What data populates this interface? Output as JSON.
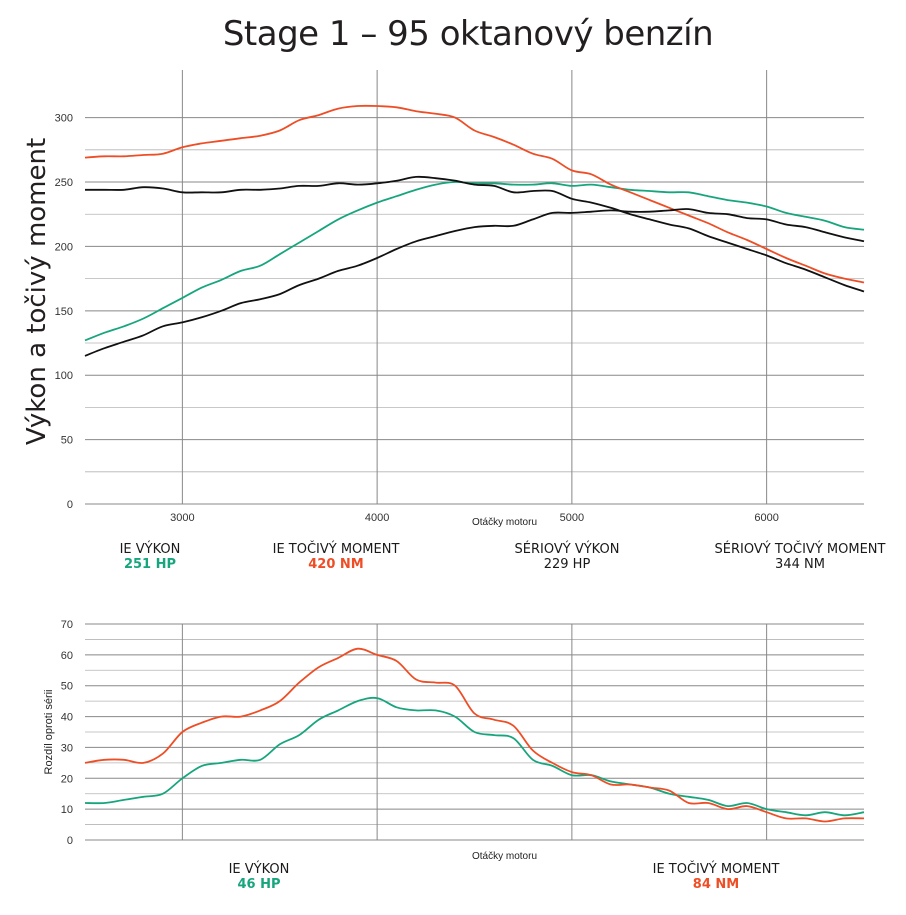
{
  "title": "Stage 1 – 95 oktanový benzín",
  "colors": {
    "ie_power": "#17a57e",
    "ie_torque": "#ee4e26",
    "stock": "#111111",
    "grid": "#888888"
  },
  "stats_top": [
    {
      "label": "IE VÝKON",
      "value": "251 HP",
      "color": "#17a57e"
    },
    {
      "label": "IE TOČIVÝ MOMENT",
      "value": "420 NM",
      "color": "#ee4e26"
    },
    {
      "label": "SÉRIOVÝ VÝKON",
      "value": "229 HP",
      "color": "#1a1a1a"
    },
    {
      "label": "SÉRIOVÝ TOČIVÝ MOMENT",
      "value": "344 NM",
      "color": "#1a1a1a"
    }
  ],
  "stats_bottom": [
    {
      "label": "IE VÝKON",
      "value": "46 HP",
      "color": "#17a57e"
    },
    {
      "label": "IE TOČIVÝ MOMENT",
      "value": "84 NM",
      "color": "#ee4e26"
    }
  ],
  "chart_data": [
    {
      "type": "line",
      "xlabel": "Otáčky motoru",
      "ylabel": "Výkon a točivý moment",
      "xlim": [
        2500,
        6500
      ],
      "ylim": [
        0,
        330
      ],
      "xticks": [
        3000,
        4000,
        5000,
        6000
      ],
      "yticks": [
        0,
        50,
        100,
        150,
        200,
        250,
        300
      ],
      "grid": true,
      "series": [
        {
          "key": "ie_power",
          "color": "#17a57e",
          "x": [
            2500,
            2600,
            2700,
            2800,
            2900,
            3000,
            3100,
            3200,
            3300,
            3400,
            3500,
            3600,
            3700,
            3800,
            3900,
            4000,
            4100,
            4200,
            4300,
            4400,
            4500,
            4600,
            4700,
            4800,
            4900,
            5000,
            5100,
            5200,
            5300,
            5400,
            5500,
            5600,
            5700,
            5800,
            5900,
            6000,
            6100,
            6200,
            6300,
            6400,
            6500
          ],
          "y": [
            127,
            133,
            138,
            144,
            152,
            160,
            168,
            174,
            181,
            185,
            194,
            203,
            212,
            221,
            228,
            234,
            239,
            244,
            248,
            250,
            249,
            249,
            248,
            248,
            249,
            247,
            248,
            246,
            244,
            243,
            242,
            242,
            239,
            236,
            234,
            231,
            226,
            223,
            220,
            215,
            213
          ]
        },
        {
          "key": "ie_torque",
          "color": "#ee4e26",
          "x": [
            2500,
            2600,
            2700,
            2800,
            2900,
            3000,
            3100,
            3200,
            3300,
            3400,
            3500,
            3600,
            3700,
            3800,
            3900,
            4000,
            4100,
            4200,
            4300,
            4400,
            4500,
            4600,
            4700,
            4800,
            4900,
            5000,
            5100,
            5200,
            5300,
            5400,
            5500,
            5600,
            5700,
            5800,
            5900,
            6000,
            6100,
            6200,
            6300,
            6400,
            6500
          ],
          "y": [
            269,
            270,
            270,
            271,
            272,
            277,
            280,
            282,
            284,
            286,
            290,
            298,
            302,
            307,
            309,
            309,
            308,
            305,
            303,
            300,
            290,
            285,
            279,
            272,
            268,
            259,
            256,
            248,
            242,
            236,
            230,
            224,
            218,
            211,
            205,
            198,
            191,
            185,
            179,
            175,
            172
          ]
        },
        {
          "key": "stock_power",
          "color": "#111111",
          "x": [
            2500,
            2600,
            2700,
            2800,
            2900,
            3000,
            3100,
            3200,
            3300,
            3400,
            3500,
            3600,
            3700,
            3800,
            3900,
            4000,
            4100,
            4200,
            4300,
            4400,
            4500,
            4600,
            4700,
            4800,
            4900,
            5000,
            5100,
            5200,
            5300,
            5400,
            5500,
            5600,
            5700,
            5800,
            5900,
            6000,
            6100,
            6200,
            6300,
            6400,
            6500
          ],
          "y": [
            115,
            121,
            126,
            131,
            138,
            141,
            145,
            150,
            156,
            159,
            163,
            170,
            175,
            181,
            185,
            191,
            198,
            204,
            208,
            212,
            215,
            216,
            216,
            221,
            226,
            226,
            227,
            228,
            227,
            227,
            228,
            229,
            226,
            225,
            222,
            221,
            217,
            215,
            211,
            207,
            204
          ]
        },
        {
          "key": "stock_torque",
          "color": "#111111",
          "x": [
            2500,
            2600,
            2700,
            2800,
            2900,
            3000,
            3100,
            3200,
            3300,
            3400,
            3500,
            3600,
            3700,
            3800,
            3900,
            4000,
            4100,
            4200,
            4300,
            4400,
            4500,
            4600,
            4700,
            4800,
            4900,
            5000,
            5100,
            5200,
            5300,
            5400,
            5500,
            5600,
            5700,
            5800,
            5900,
            6000,
            6100,
            6200,
            6300,
            6400,
            6500
          ],
          "y": [
            244,
            244,
            244,
            246,
            245,
            242,
            242,
            242,
            244,
            244,
            245,
            247,
            247,
            249,
            248,
            249,
            251,
            254,
            253,
            251,
            248,
            247,
            242,
            243,
            243,
            237,
            234,
            230,
            225,
            221,
            217,
            214,
            208,
            203,
            198,
            193,
            187,
            182,
            176,
            170,
            165
          ]
        }
      ]
    },
    {
      "type": "line",
      "xlabel": "Otáčky motoru",
      "ylabel": "Rozdíl oproti sérii",
      "xlim": [
        2500,
        6500
      ],
      "ylim": [
        0,
        70
      ],
      "xticks": [
        3000,
        4000,
        5000,
        6000
      ],
      "yticks": [
        0,
        10,
        20,
        30,
        40,
        50,
        60,
        70
      ],
      "grid": true,
      "series": [
        {
          "key": "power_diff",
          "color": "#17a57e",
          "x": [
            2500,
            2600,
            2700,
            2800,
            2900,
            3000,
            3100,
            3200,
            3300,
            3400,
            3500,
            3600,
            3700,
            3800,
            3900,
            4000,
            4100,
            4200,
            4300,
            4400,
            4500,
            4600,
            4700,
            4800,
            4900,
            5000,
            5100,
            5200,
            5300,
            5400,
            5500,
            5600,
            5700,
            5800,
            5900,
            6000,
            6100,
            6200,
            6300,
            6400,
            6500
          ],
          "y": [
            12,
            12,
            13,
            14,
            15,
            20,
            24,
            25,
            26,
            26,
            31,
            34,
            39,
            42,
            45,
            46,
            43,
            42,
            42,
            40,
            35,
            34,
            33,
            26,
            24,
            21,
            21,
            19,
            18,
            17,
            15,
            14,
            13,
            11,
            12,
            10,
            9,
            8,
            9,
            8,
            9
          ]
        },
        {
          "key": "torque_diff",
          "color": "#ee4e26",
          "x": [
            2500,
            2600,
            2700,
            2800,
            2900,
            3000,
            3100,
            3200,
            3300,
            3400,
            3500,
            3600,
            3700,
            3800,
            3900,
            4000,
            4100,
            4200,
            4300,
            4400,
            4500,
            4600,
            4700,
            4800,
            4900,
            5000,
            5100,
            5200,
            5300,
            5400,
            5500,
            5600,
            5700,
            5800,
            5900,
            6000,
            6100,
            6200,
            6300,
            6400,
            6500
          ],
          "y": [
            25,
            26,
            26,
            25,
            28,
            35,
            38,
            40,
            40,
            42,
            45,
            51,
            56,
            59,
            62,
            60,
            58,
            52,
            51,
            50,
            41,
            39,
            37,
            29,
            25,
            22,
            21,
            18,
            18,
            17,
            16,
            12,
            12,
            10,
            11,
            9,
            7,
            7,
            6,
            7,
            7
          ]
        }
      ]
    }
  ]
}
